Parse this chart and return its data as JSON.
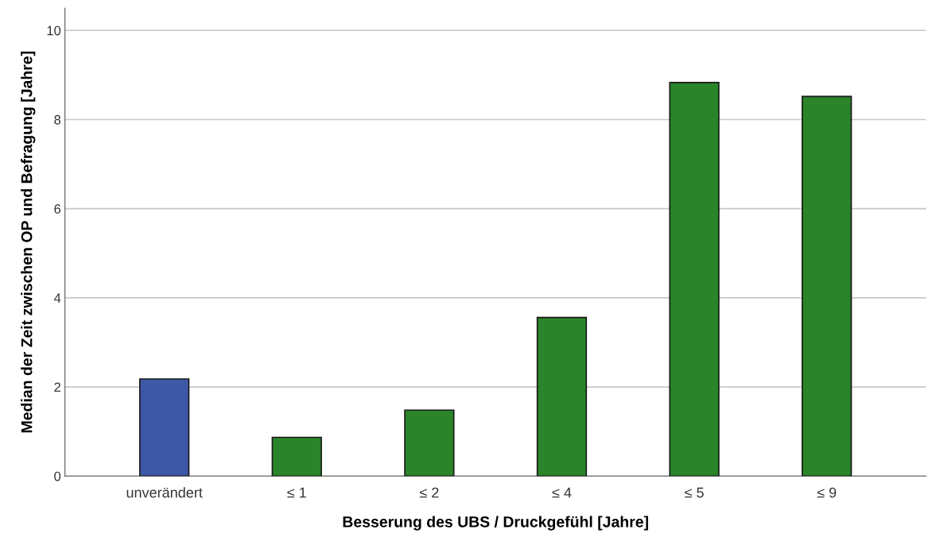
{
  "chart_data": {
    "type": "bar",
    "xlabel": "Besserung des UBS / Druckgefühl [Jahre]",
    "ylabel": "Median der Zeit zwischen OP und Befragung [Jahre]",
    "categories": [
      "unverändert",
      "≤ 1",
      "≤ 2",
      "≤ 4",
      "≤ 5",
      "≤ 9"
    ],
    "values": [
      2.18,
      0.87,
      1.48,
      3.56,
      8.83,
      8.52
    ],
    "colors": [
      "#3e58a8",
      "#2a8429",
      "#2a8429",
      "#2a8429",
      "#2a8429",
      "#2a8429"
    ],
    "ylim": [
      0,
      10.5
    ],
    "yticks": [
      0,
      2,
      4,
      6,
      8,
      10
    ],
    "grid": "y"
  }
}
